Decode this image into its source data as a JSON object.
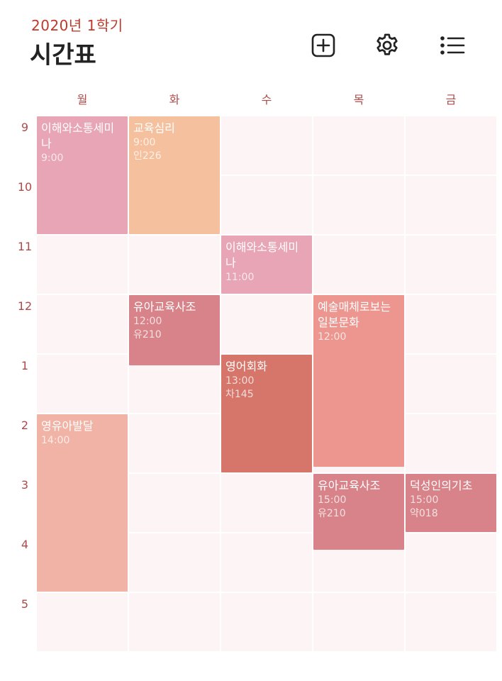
{
  "header": {
    "semester": "2020년 1학기",
    "title": "시간표",
    "buttons": [
      {
        "name": "add-course-button",
        "icon": "plus-square-icon"
      },
      {
        "name": "settings-button",
        "icon": "gear-icon"
      },
      {
        "name": "list-button",
        "icon": "list-icon"
      }
    ]
  },
  "colors": {
    "accent": "#c0392b",
    "cell": "#fcf4f5",
    "pink": "#e7a5b6",
    "peach": "#f4c09e",
    "rose": "#d88389",
    "coral": "#ec968f",
    "red": "#d6756a",
    "salmon": "#f0b3a6"
  },
  "days": [
    "월",
    "화",
    "수",
    "목",
    "금"
  ],
  "hours": [
    "9",
    "10",
    "11",
    "12",
    "1",
    "2",
    "3",
    "4",
    "5"
  ],
  "courses": [
    {
      "id": "c1",
      "name": "이해와소통세미나",
      "time": "9:00",
      "room": "",
      "day": 0,
      "start": 0,
      "end": 2,
      "color": "pink"
    },
    {
      "id": "c2",
      "name": "교육심리",
      "time": "9:00",
      "room": "인226",
      "day": 1,
      "start": 0,
      "end": 2,
      "color": "peach"
    },
    {
      "id": "c3",
      "name": "이해와소통세미나",
      "time": "11:00",
      "room": "",
      "day": 2,
      "start": 2,
      "end": 3,
      "color": "pink"
    },
    {
      "id": "c4",
      "name": "유아교육사조",
      "time": "12:00",
      "room": "유210",
      "day": 1,
      "start": 3,
      "end": 4.2,
      "color": "rose"
    },
    {
      "id": "c5",
      "name": "예술매체로보는일본문화",
      "time": "12:00",
      "room": "",
      "day": 3,
      "start": 3,
      "end": 5.9,
      "color": "coral"
    },
    {
      "id": "c6",
      "name": "영어회화",
      "time": "13:00",
      "room": "차145",
      "day": 2,
      "start": 4,
      "end": 6,
      "color": "red"
    },
    {
      "id": "c7",
      "name": "영유아발달",
      "time": "14:00",
      "room": "",
      "day": 0,
      "start": 5,
      "end": 8,
      "color": "salmon"
    },
    {
      "id": "c8",
      "name": "유아교육사조",
      "time": "15:00",
      "room": "유210",
      "day": 3,
      "start": 6,
      "end": 7.3,
      "color": "rose"
    },
    {
      "id": "c9",
      "name": "덕성인의기초",
      "time": "15:00",
      "room": "약018",
      "day": 4,
      "start": 6,
      "end": 7,
      "color": "rose"
    }
  ]
}
